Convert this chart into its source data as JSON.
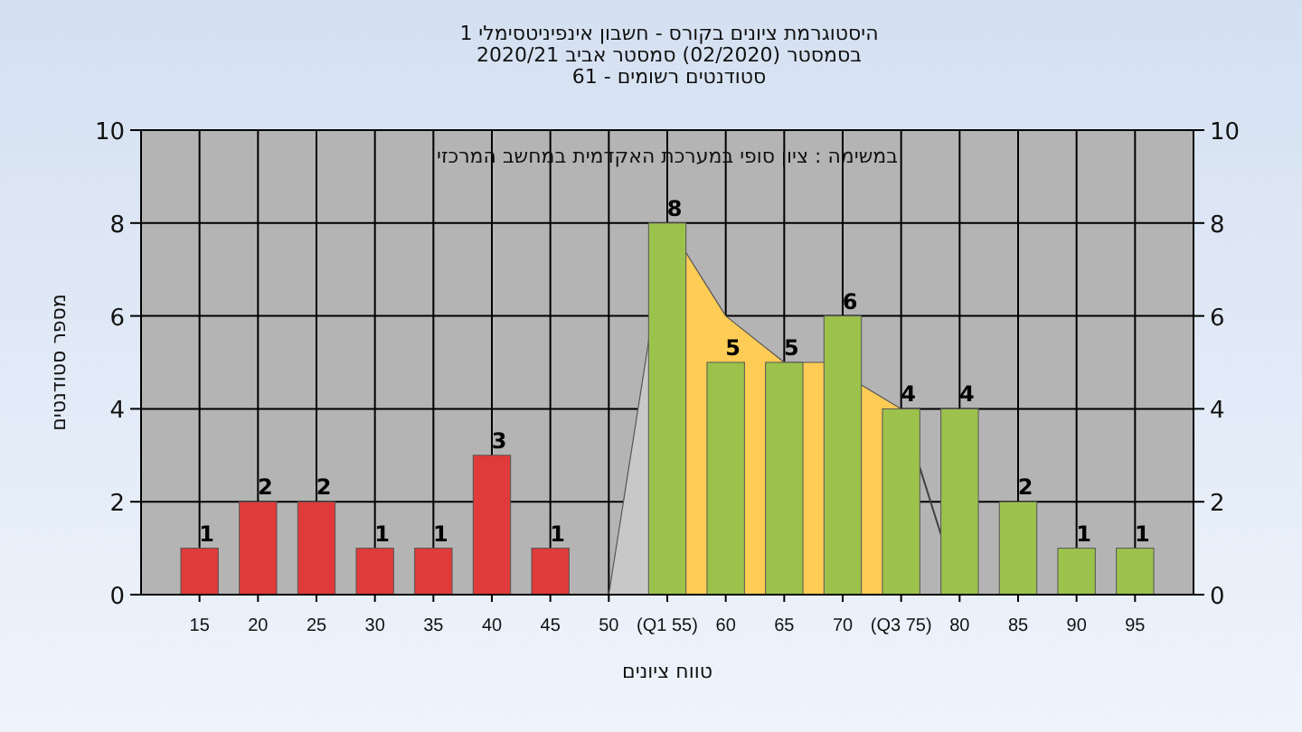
{
  "chart_data": {
    "type": "bar",
    "title": "היסטוגרמת ציונים בקורס - חשבון אינפיניטסימלי 1",
    "subtitle": "בסמסטר  (02/2020)  סמסטר אביב 2020/21\nסטודנטים רשומים - 61",
    "annotations": [
      "במשימה : ציון סופי במערכת האקדמית במחשב המרכזי"
    ],
    "xlabel": "טווח ציונים",
    "ylabel": "מספר סטודנטים",
    "series": [
      {
        "type": "area",
        "color": "#c8c8c8",
        "x": [
          50,
          55
        ],
        "values": [
          0,
          8
        ]
      },
      {
        "type": "area",
        "color": "#ffcc55",
        "x": [
          55,
          60,
          65,
          68.4,
          75
        ],
        "values": [
          8,
          6,
          5,
          5,
          4
        ]
      },
      {
        "type": "line",
        "color": "#404040",
        "x": [
          75,
          78.4
        ],
        "values": [
          4,
          1.3
        ]
      },
      {
        "color": "#e03a3a",
        "x": [
          15,
          20,
          25,
          30,
          35,
          40,
          45
        ],
        "values": [
          1,
          2,
          2,
          1,
          1,
          3,
          1
        ],
        "value_labels": [
          "1",
          "2",
          "2",
          "1",
          "1",
          "3",
          "1"
        ]
      },
      {
        "color": "#9cc24c",
        "x": [
          55,
          60,
          65,
          70,
          75,
          80,
          85,
          90,
          95
        ],
        "values": [
          8,
          5,
          5,
          6,
          4,
          4,
          2,
          1,
          1
        ],
        "value_labels": [
          "8",
          "5",
          "5",
          "6",
          "4",
          "4",
          "2",
          "1",
          "1"
        ]
      }
    ],
    "xlim": [
      10,
      100
    ],
    "xticks": [
      15,
      20,
      25,
      30,
      35,
      40,
      45,
      50,
      {
        "value": 55,
        "label": "(Q1 55)"
      },
      60,
      65,
      70,
      {
        "value": 75,
        "label": "(Q3 75)"
      },
      80,
      85,
      90,
      95
    ],
    "ylim": [
      0,
      10
    ],
    "yticks": [
      0,
      2,
      4,
      6,
      8,
      10
    ],
    "y2lim": [
      0,
      10
    ],
    "y2ticks": [
      0,
      2,
      4,
      6,
      8,
      10
    ],
    "grid": true
  }
}
